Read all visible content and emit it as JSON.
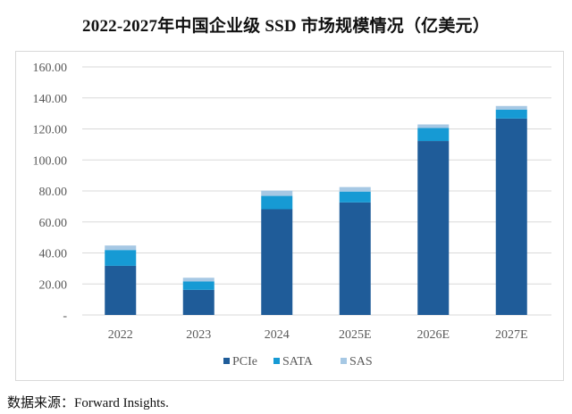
{
  "title": "2022-2027年中国企业级 SSD 市场规模情况（亿美元）",
  "source": "数据来源：Forward Insights.",
  "chart_data": {
    "type": "bar",
    "stacked": true,
    "title": "2022-2027年中国企业级 SSD 市场规模情况（亿美元）",
    "xlabel": "",
    "ylabel": "",
    "ylim": [
      0,
      160
    ],
    "yticks": [
      0,
      20,
      40,
      60,
      80,
      100,
      120,
      140,
      160
    ],
    "ytick_labels": [
      "-",
      "20.00",
      "40.00",
      "60.00",
      "80.00",
      "100.00",
      "120.00",
      "140.00",
      "160.00"
    ],
    "categories": [
      "2022",
      "2023",
      "2024",
      "2025E",
      "2026E",
      "2027E"
    ],
    "series": [
      {
        "name": "PCIe",
        "color": "#1f5c99",
        "values": [
          31.7,
          16.2,
          68.2,
          72.6,
          112.2,
          126.7
        ]
      },
      {
        "name": "SATA",
        "color": "#169ad4",
        "values": [
          10.2,
          5.4,
          8.6,
          7.0,
          8.4,
          5.8
        ]
      },
      {
        "name": "SAS",
        "color": "#a6c8e4",
        "values": [
          2.9,
          2.4,
          3.4,
          2.9,
          2.3,
          2.3
        ]
      }
    ],
    "grid": true,
    "legend": "bottom"
  }
}
